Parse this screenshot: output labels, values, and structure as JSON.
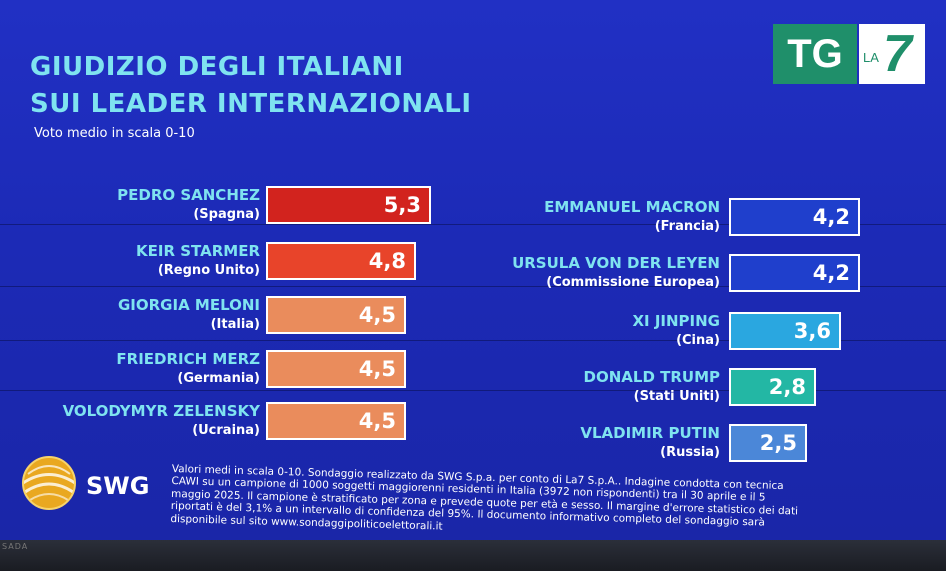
{
  "title_line1": "GIUDIZIO DEGLI ITALIANI",
  "title_line2": "SUI LEADER INTERNAZIONALI",
  "subtitle": "Voto medio in scala 0-10",
  "logo": {
    "tg": "TG",
    "la": "LA",
    "seven": "7"
  },
  "brand": "SWG",
  "bezel_text": "SADA",
  "footnote_lines": [
    "Valori medi in scala 0-10. Sondaggio realizzato da SWG S.p.a. per conto di La7 S.p.A.. Indagine condotta con tecnica",
    "CAWI su un campione di 1000 soggetti maggiorenni residenti in Italia (3972 non rispondenti) tra il 30 aprile e il 5",
    "maggio 2025. Il campione è stratificato per zona e prevede quote per età e sesso. Il margine d'errore statistico dei dati",
    "riportati è del 3,1% a un intervallo di confidenza del 95%. Il documento informativo completo del sondaggio sarà",
    "disponibile sul sito www.sondaggipoliticoelettorali.it"
  ],
  "chart_data": {
    "type": "bar",
    "title": "GIUDIZIO DEGLI ITALIANI SUI LEADER INTERNAZIONALI",
    "subtitle": "Voto medio in scala 0-10",
    "scale": [
      0,
      10
    ],
    "leaders": [
      {
        "name": "PEDRO SANCHEZ",
        "country": "(Spagna)",
        "value": 5.3,
        "label": "5,3",
        "color": "#d2231e"
      },
      {
        "name": "KEIR STARMER",
        "country": "(Regno Unito)",
        "value": 4.8,
        "label": "4,8",
        "color": "#e8442a"
      },
      {
        "name": "GIORGIA MELONI",
        "country": "(Italia)",
        "value": 4.5,
        "label": "4,5",
        "color": "#ea8c5c"
      },
      {
        "name": "FRIEDRICH MERZ",
        "country": "(Germania)",
        "value": 4.5,
        "label": "4,5",
        "color": "#ea8c5c"
      },
      {
        "name": "VOLODYMYR ZELENSKY",
        "country": "(Ucraina)",
        "value": 4.5,
        "label": "4,5",
        "color": "#ea8c5c"
      },
      {
        "name": "EMMANUEL MACRON",
        "country": "(Francia)",
        "value": 4.2,
        "label": "4,2",
        "color": "#1f3fcc"
      },
      {
        "name": "URSULA VON DER LEYEN",
        "country": "(Commissione Europea)",
        "value": 4.2,
        "label": "4,2",
        "color": "#1f3fcc"
      },
      {
        "name": "XI JINPING",
        "country": "(Cina)",
        "value": 3.6,
        "label": "3,6",
        "color": "#2aa7e0"
      },
      {
        "name": "DONALD TRUMP",
        "country": "(Stati Uniti)",
        "value": 2.8,
        "label": "2,8",
        "color": "#23b7a4"
      },
      {
        "name": "VLADIMIR PUTIN",
        "country": "(Russia)",
        "value": 2.5,
        "label": "2,5",
        "color": "#4b87d8"
      }
    ]
  }
}
